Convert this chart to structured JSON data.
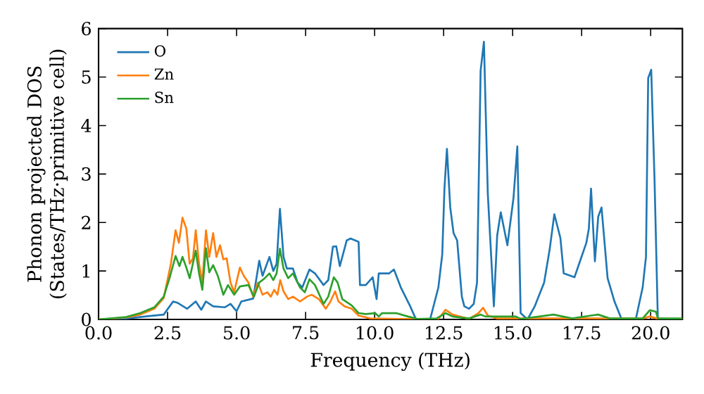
{
  "chart_data": {
    "type": "line",
    "xlabel": "Frequency (THz)",
    "ylabel": "Phonon projected DOS (States/THz·primitive cell)",
    "xlim": [
      0,
      21.15
    ],
    "ylim": [
      0,
      6
    ],
    "xticks": [
      {
        "value": 0,
        "label": "0.0"
      },
      {
        "value": 2.5,
        "label": "2.5"
      },
      {
        "value": 5,
        "label": "5.0"
      },
      {
        "value": 7.5,
        "label": "7.5"
      },
      {
        "value": 10,
        "label": "10.0"
      },
      {
        "value": 12.5,
        "label": "12.5"
      },
      {
        "value": 15,
        "label": "15.0"
      },
      {
        "value": 17.5,
        "label": "17.5"
      },
      {
        "value": 20,
        "label": "20.0"
      }
    ],
    "yticks": [
      0,
      1,
      2,
      3,
      4,
      5,
      6
    ],
    "grid": false,
    "legend": "top left",
    "marker": "none",
    "line_style": "solid",
    "series": [
      {
        "name": "O",
        "color": "#1f77b4",
        "x": [
          0,
          1.0,
          2.36,
          2.7,
          2.87,
          3.21,
          3.52,
          3.72,
          3.89,
          4.15,
          4.57,
          4.78,
          5.0,
          5.17,
          5.6,
          5.82,
          5.94,
          6.19,
          6.33,
          6.45,
          6.57,
          6.7,
          6.82,
          7.04,
          7.21,
          7.38,
          7.64,
          7.84,
          8.15,
          8.32,
          8.49,
          8.61,
          8.74,
          8.99,
          9.13,
          9.42,
          9.47,
          9.68,
          9.93,
          10.07,
          10.15,
          10.53,
          10.7,
          10.95,
          11.29,
          11.5,
          12.01,
          12.31,
          12.45,
          12.53,
          12.62,
          12.74,
          12.86,
          12.99,
          13.16,
          13.25,
          13.42,
          13.59,
          13.71,
          13.84,
          13.96,
          14.1,
          14.32,
          14.44,
          14.57,
          14.81,
          15.03,
          15.17,
          15.29,
          15.54,
          15.8,
          16.14,
          16.34,
          16.51,
          16.73,
          16.85,
          17.24,
          17.41,
          17.67,
          17.76,
          17.84,
          17.98,
          18.1,
          18.22,
          18.44,
          18.69,
          18.95,
          19.46,
          19.71,
          19.83,
          19.91,
          20.02,
          20.14,
          20.26,
          21.15
        ],
        "values": [
          0,
          0.02,
          0.1,
          0.37,
          0.34,
          0.22,
          0.37,
          0.2,
          0.37,
          0.27,
          0.25,
          0.32,
          0.17,
          0.37,
          0.43,
          1.21,
          0.9,
          1.29,
          1.0,
          1.15,
          2.28,
          1.29,
          1.05,
          1.05,
          0.76,
          0.66,
          1.03,
          0.95,
          0.71,
          0.81,
          1.5,
          1.51,
          1.1,
          1.63,
          1.67,
          1.6,
          0.71,
          0.71,
          0.87,
          0.42,
          0.95,
          0.95,
          1.03,
          0.66,
          0.27,
          0,
          0,
          0.66,
          1.34,
          2.7,
          3.52,
          2.31,
          1.78,
          1.63,
          0.47,
          0.27,
          0.22,
          0.32,
          0.76,
          5.13,
          5.73,
          2.6,
          0.27,
          1.73,
          2.21,
          1.53,
          2.5,
          3.57,
          0.13,
          0,
          0.27,
          0.76,
          1.44,
          2.17,
          1.68,
          0.95,
          0.87,
          1.15,
          1.58,
          1.87,
          2.7,
          1.2,
          2.12,
          2.31,
          0.85,
          0.37,
          0,
          0,
          0.66,
          1.29,
          4.98,
          5.15,
          2.89,
          0,
          0
        ]
      },
      {
        "name": "Zn",
        "color": "#ff7f0e",
        "x": [
          0,
          1.0,
          1.51,
          2.02,
          2.36,
          2.62,
          2.79,
          2.91,
          3.04,
          3.18,
          3.3,
          3.42,
          3.52,
          3.64,
          3.76,
          3.89,
          4.01,
          4.15,
          4.27,
          4.4,
          4.52,
          4.64,
          4.78,
          4.91,
          5.12,
          5.26,
          5.43,
          5.6,
          5.77,
          5.94,
          6.11,
          6.24,
          6.36,
          6.48,
          6.58,
          6.7,
          6.87,
          7.04,
          7.3,
          7.55,
          7.72,
          7.98,
          8.23,
          8.4,
          8.57,
          8.69,
          8.91,
          9.17,
          9.42,
          9.85,
          10.87,
          12.31,
          12.57,
          12.82,
          13.42,
          13.76,
          13.93,
          14.1,
          14.44,
          19.71,
          19.97,
          20.22,
          21.15
        ],
        "values": [
          0,
          0.04,
          0.1,
          0.22,
          0.44,
          1.15,
          1.84,
          1.58,
          2.1,
          1.87,
          1.15,
          1.26,
          1.84,
          1.15,
          0.76,
          1.84,
          1.29,
          1.78,
          1.29,
          1.53,
          1.24,
          1.26,
          0.76,
          0.56,
          1.07,
          0.9,
          0.76,
          0.47,
          0.76,
          0.51,
          0.56,
          0.47,
          0.61,
          0.51,
          0.81,
          0.58,
          0.42,
          0.47,
          0.37,
          0.47,
          0.51,
          0.42,
          0.22,
          0.37,
          0.58,
          0.37,
          0.27,
          0.22,
          0.08,
          0.02,
          0.01,
          0.01,
          0.2,
          0.1,
          0.01,
          0.13,
          0.24,
          0.08,
          0.02,
          0.02,
          0.06,
          0.02,
          0
        ]
      },
      {
        "name": "Sn",
        "color": "#2ca02c",
        "x": [
          0,
          1.0,
          1.51,
          2.02,
          2.36,
          2.57,
          2.79,
          2.93,
          3.04,
          3.18,
          3.3,
          3.52,
          3.64,
          3.76,
          3.89,
          4.01,
          4.15,
          4.32,
          4.52,
          4.69,
          4.91,
          5.12,
          5.43,
          5.63,
          5.82,
          6.02,
          6.19,
          6.33,
          6.45,
          6.57,
          6.7,
          6.87,
          7.04,
          7.3,
          7.47,
          7.64,
          7.84,
          8.15,
          8.32,
          8.52,
          8.66,
          8.83,
          9.17,
          9.42,
          9.68,
          10.02,
          10.15,
          10.27,
          10.78,
          11.21,
          11.55,
          12.24,
          12.57,
          12.82,
          13.42,
          13.84,
          14.01,
          14.44,
          15.12,
          15.29,
          16.48,
          17.16,
          17.84,
          18.1,
          18.52,
          19.71,
          19.97,
          20.19,
          20.26,
          21.15
        ],
        "values": [
          0,
          0.05,
          0.13,
          0.25,
          0.47,
          0.85,
          1.31,
          1.1,
          1.29,
          1.07,
          0.85,
          1.42,
          0.95,
          0.61,
          1.47,
          0.97,
          1.12,
          0.9,
          0.51,
          0.71,
          0.51,
          0.68,
          0.71,
          0.47,
          0.76,
          0.85,
          0.95,
          0.81,
          0.95,
          1.46,
          1.05,
          0.85,
          0.95,
          0.66,
          0.56,
          0.83,
          0.71,
          0.32,
          0.47,
          0.87,
          0.76,
          0.42,
          0.29,
          0.13,
          0.11,
          0.13,
          0.06,
          0.13,
          0.13,
          0.06,
          0.01,
          0.02,
          0.13,
          0.06,
          0.02,
          0.1,
          0.06,
          0.06,
          0.06,
          0.01,
          0.1,
          0.02,
          0.08,
          0.1,
          0.02,
          0.02,
          0.19,
          0.16,
          0.02,
          0.02
        ]
      }
    ]
  }
}
